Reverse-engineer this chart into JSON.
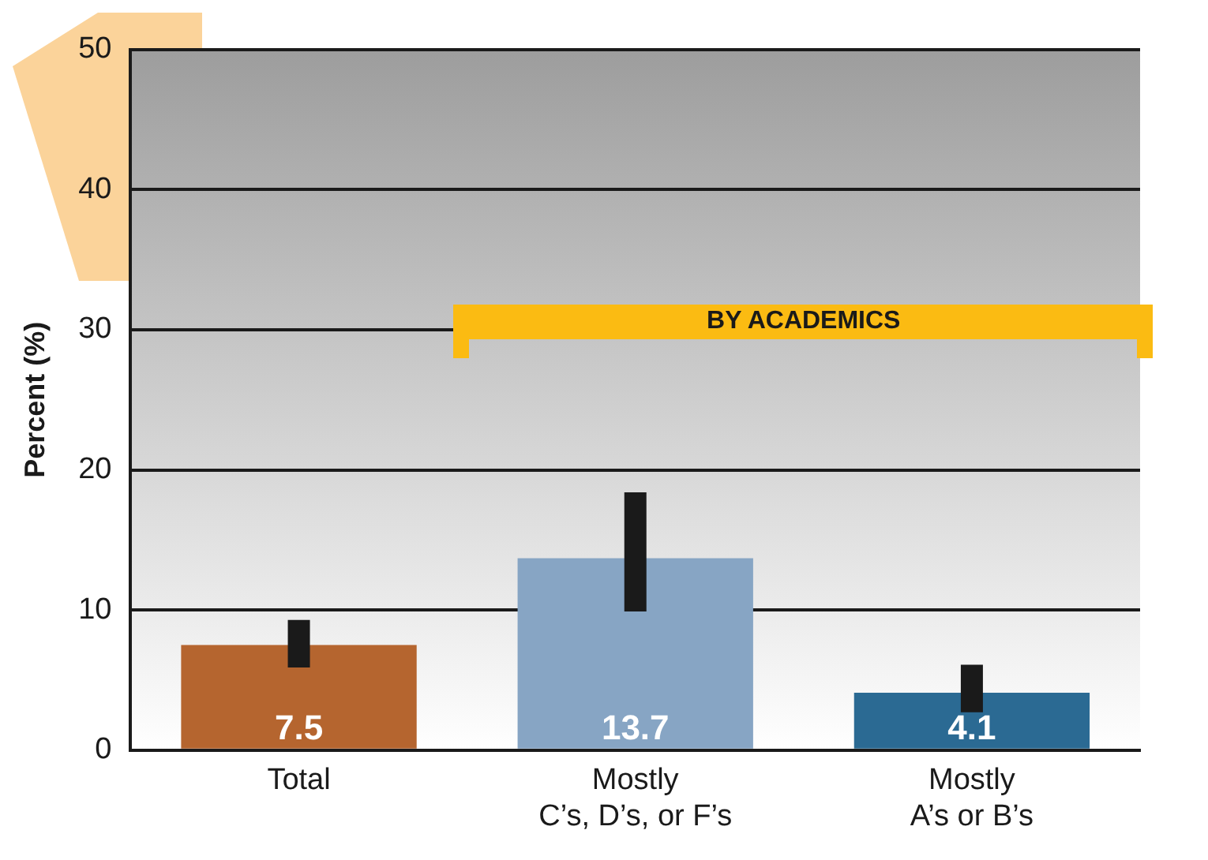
{
  "chart_data": {
    "type": "bar",
    "ylabel": "Percent (%)",
    "categories": [
      "Total",
      "Mostly\nC’s, D’s, or F’s",
      "Mostly\nA’s or B’s"
    ],
    "values": [
      7.5,
      13.7,
      4.1
    ],
    "colors": [
      "#b5652f",
      "#87a5c4",
      "#2b6a93"
    ],
    "errors": [
      [
        5.9,
        9.3
      ],
      [
        9.9,
        18.4
      ],
      [
        2.7,
        6.1
      ]
    ],
    "data_labels": true,
    "annotations": [
      "BY ACADEMICS"
    ],
    "ylim": [
      0,
      50
    ],
    "yticks": [
      0,
      10,
      20,
      30,
      40,
      50
    ],
    "grid": "y",
    "legend": false
  }
}
